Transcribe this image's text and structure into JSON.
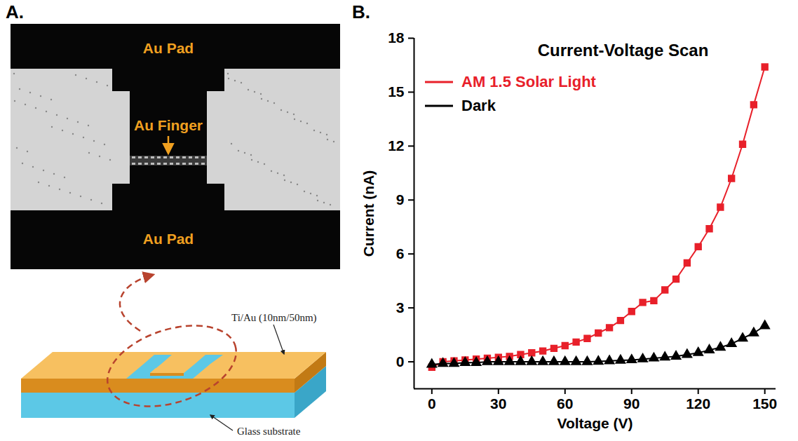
{
  "panel_a": {
    "label": "A.",
    "photo_labels": {
      "top_pad": "Au Pad",
      "finger": "Au Finger",
      "bottom_pad": "Au Pad"
    },
    "schematic_labels": {
      "layer": "Ti/Au (10nm/50nm)",
      "substrate": "Glass substrate"
    }
  },
  "chart_data": {
    "type": "line",
    "panel_label": "B.",
    "title": "Current-Voltage Scan",
    "x_label": "Voltage (V)",
    "y_label": "Current (nA)",
    "x": [
      0,
      5,
      10,
      15,
      20,
      25,
      30,
      35,
      40,
      45,
      50,
      55,
      60,
      65,
      70,
      75,
      80,
      85,
      90,
      95,
      100,
      105,
      110,
      115,
      120,
      125,
      130,
      135,
      140,
      145,
      150
    ],
    "series": [
      {
        "name": "AM 1.5 Solar Light",
        "color": "#e8202a",
        "marker": "square",
        "line_style": "solid",
        "values": [
          -0.3,
          0,
          0.05,
          0.1,
          0.15,
          0.2,
          0.25,
          0.3,
          0.4,
          0.5,
          0.6,
          0.75,
          0.9,
          1.1,
          1.3,
          1.6,
          1.9,
          2.3,
          2.8,
          3.3,
          3.4,
          4.0,
          4.6,
          5.5,
          6.4,
          7.4,
          8.6,
          10.2,
          12.1,
          14.3,
          16.4
        ]
      },
      {
        "name": "Dark",
        "color": "#000000",
        "marker": "triangle",
        "line_style": "solid",
        "values": [
          -0.15,
          -0.1,
          -0.1,
          -0.05,
          -0.05,
          0,
          0,
          0,
          0,
          0,
          0,
          0,
          0,
          0,
          0,
          0.02,
          0.05,
          0.08,
          0.1,
          0.15,
          0.2,
          0.25,
          0.3,
          0.4,
          0.5,
          0.65,
          0.8,
          1.0,
          1.3,
          1.6,
          2.0
        ]
      }
    ],
    "xlim": [
      -8,
      155
    ],
    "ylim": [
      -1.5,
      18
    ],
    "xticks": [
      0,
      30,
      60,
      90,
      120,
      150
    ],
    "yticks": [
      0,
      3,
      6,
      9,
      12,
      15,
      18
    ],
    "legend": "top-left",
    "grid": false
  }
}
